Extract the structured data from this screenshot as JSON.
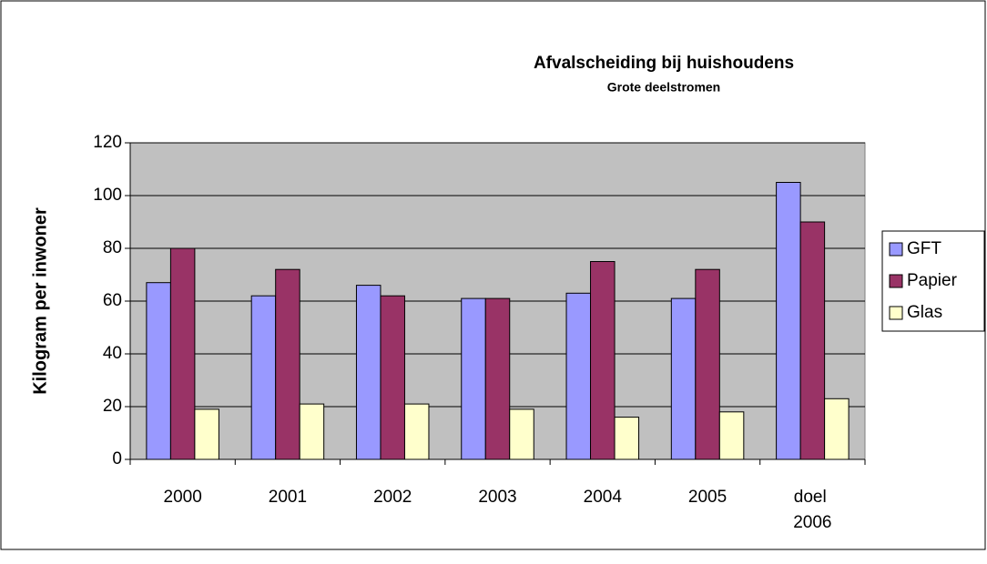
{
  "chart_data": {
    "type": "bar",
    "title": "Afvalscheiding bij huishoudens",
    "subtitle": "Grote deelstromen",
    "y_label": "Kilogram per inwoner",
    "categories": [
      "2000",
      "2001",
      "2002",
      "2003",
      "2004",
      "2005",
      "doel 2006"
    ],
    "series": [
      {
        "name": "GFT",
        "color": "#9999ff",
        "values": [
          67,
          62,
          66,
          61,
          63,
          61,
          105
        ]
      },
      {
        "name": "Papier",
        "color": "#993366",
        "values": [
          80,
          72,
          62,
          61,
          75,
          72,
          90
        ]
      },
      {
        "name": "Glas",
        "color": "#ffffcc",
        "values": [
          19,
          21,
          21,
          19,
          16,
          18,
          23
        ]
      }
    ],
    "ylim": [
      0,
      120
    ],
    "yticks": [
      0,
      20,
      40,
      60,
      80,
      100,
      120
    ],
    "grid": true,
    "legend": "right",
    "plot_background": "#c0c0c0"
  }
}
